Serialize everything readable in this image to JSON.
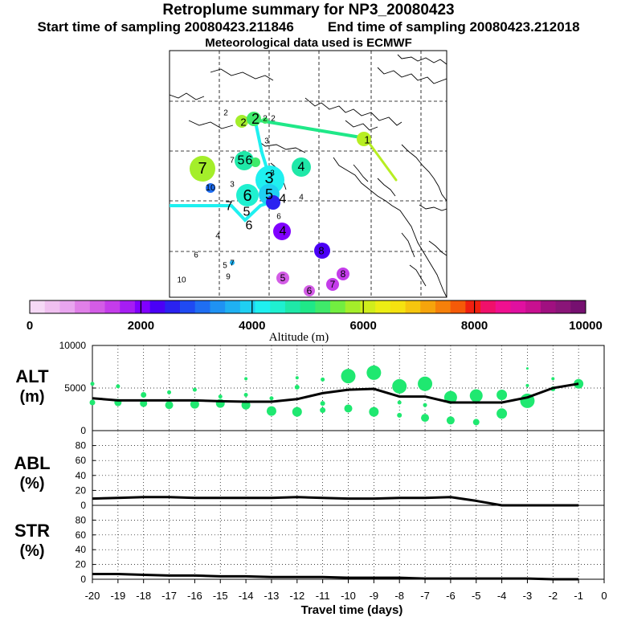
{
  "header": {
    "title": "Retroplume summary for NP3_20080423",
    "start_label": "Start time of sampling 20080423.211846",
    "end_label": "End time of sampling 20080423.212018",
    "met_label": "Meteorological data used is ECMWF"
  },
  "colorbar": {
    "axis_label": "Altitude (m)",
    "ticks": [
      "0",
      "2000",
      "4000",
      "6000",
      "8000",
      "10000"
    ],
    "colors": [
      "#f6d9f6",
      "#f0c0f0",
      "#e9a5ef",
      "#e07fe8",
      "#d35ce6",
      "#c43cea",
      "#a61df3",
      "#8000ff",
      "#4a00f6",
      "#2a22f0",
      "#1f4af2",
      "#1f6ef2",
      "#1f92f3",
      "#1fb1f2",
      "#1fd0f2",
      "#1ff0f0",
      "#1ff0d0",
      "#1fe8a8",
      "#1fe888",
      "#3fea6a",
      "#72ee40",
      "#a4ee2a",
      "#d0ee1c",
      "#ecee14",
      "#f5e210",
      "#f6c60e",
      "#f6a40c",
      "#f6800a",
      "#f55a08",
      "#f02010",
      "#f0106a",
      "#f01090",
      "#e010a0",
      "#c81090",
      "#a01080",
      "#8a1578",
      "#761070"
    ]
  },
  "map_labels": [
    {
      "t": "1",
      "x": 457,
      "y": 174,
      "s": 13
    },
    {
      "t": "2",
      "x": 281,
      "y": 141,
      "s": 10
    },
    {
      "t": "2",
      "x": 303,
      "y": 152,
      "s": 13
    },
    {
      "t": "2",
      "x": 318,
      "y": 148,
      "s": 18
    },
    {
      "t": "2",
      "x": 330,
      "y": 148,
      "s": 10
    },
    {
      "t": "2",
      "x": 340,
      "y": 148,
      "s": 10
    },
    {
      "t": "3",
      "x": 332,
      "y": 176,
      "s": 10
    },
    {
      "t": "3",
      "x": 339,
      "y": 216,
      "s": 10
    },
    {
      "t": "3",
      "x": 335,
      "y": 222,
      "s": 20
    },
    {
      "t": "3",
      "x": 289,
      "y": 230,
      "s": 10
    },
    {
      "t": "4",
      "x": 375,
      "y": 208,
      "s": 16
    },
    {
      "t": "4",
      "x": 352,
      "y": 248,
      "s": 16
    },
    {
      "t": "4",
      "x": 375,
      "y": 246,
      "s": 10
    },
    {
      "t": "4",
      "x": 271,
      "y": 294,
      "s": 10
    },
    {
      "t": "4",
      "x": 352,
      "y": 288,
      "s": 16
    },
    {
      "t": "5",
      "x": 300,
      "y": 200,
      "s": 16
    },
    {
      "t": "5",
      "x": 335,
      "y": 242,
      "s": 18
    },
    {
      "t": "5",
      "x": 307,
      "y": 264,
      "s": 16
    },
    {
      "t": "5",
      "x": 280,
      "y": 331,
      "s": 10
    },
    {
      "t": "5",
      "x": 352,
      "y": 346,
      "s": 12
    },
    {
      "t": "6",
      "x": 310,
      "y": 200,
      "s": 16
    },
    {
      "t": "6",
      "x": 308,
      "y": 244,
      "s": 20
    },
    {
      "t": "6",
      "x": 347,
      "y": 270,
      "s": 10
    },
    {
      "t": "6",
      "x": 310,
      "y": 281,
      "s": 16
    },
    {
      "t": "6",
      "x": 244,
      "y": 318,
      "s": 10
    },
    {
      "t": "6",
      "x": 385,
      "y": 362,
      "s": 12
    },
    {
      "t": "7",
      "x": 252,
      "y": 210,
      "s": 20
    },
    {
      "t": "7",
      "x": 289,
      "y": 200,
      "s": 10
    },
    {
      "t": "7",
      "x": 285,
      "y": 257,
      "s": 16
    },
    {
      "t": "7",
      "x": 289,
      "y": 328,
      "s": 10
    },
    {
      "t": "7",
      "x": 414,
      "y": 354,
      "s": 12
    },
    {
      "t": "8",
      "x": 400,
      "y": 312,
      "s": 13
    },
    {
      "t": "8",
      "x": 427,
      "y": 341,
      "s": 12
    },
    {
      "t": "9",
      "x": 284,
      "y": 345,
      "s": 10
    },
    {
      "t": "10",
      "x": 226,
      "y": 349,
      "s": 10
    },
    {
      "t": "10",
      "x": 262,
      "y": 234,
      "s": 11
    }
  ],
  "panels": {
    "alt": {
      "label_line1": "ALT",
      "label_line2": "(m)",
      "ticks": [
        "10000",
        "5000",
        "0"
      ]
    },
    "abl": {
      "label_line1": "ABL",
      "label_line2": "(%)",
      "ticks": [
        "80",
        "60",
        "40",
        "20",
        "0"
      ]
    },
    "str": {
      "label_line1": "STR",
      "label_line2": "(%)",
      "ticks": [
        "80",
        "60",
        "40",
        "20",
        "0"
      ]
    }
  },
  "x_axis": {
    "label": "Travel time (days)",
    "ticks": [
      "-20",
      "-19",
      "-18",
      "-17",
      "-16",
      "-15",
      "-14",
      "-13",
      "-12",
      "-11",
      "-10",
      "-9",
      "-8",
      "-7",
      "-6",
      "-5",
      "-4",
      "-3",
      "-2",
      "-1",
      "0"
    ]
  },
  "chart_data": {
    "type": "line",
    "x": [
      -20,
      -19,
      -18,
      -17,
      -16,
      -15,
      -14,
      -13,
      -12,
      -11,
      -10,
      -9,
      -8,
      -7,
      -6,
      -5,
      -4,
      -3,
      -2,
      -1
    ],
    "xlabel": "Travel time (days)",
    "xlim": [
      -20,
      0
    ],
    "series": [
      {
        "name": "ALT (m)",
        "ylim": [
          0,
          10000
        ],
        "values": [
          3800,
          3550,
          3550,
          3550,
          3550,
          3450,
          3400,
          3400,
          3700,
          4400,
          4800,
          4900,
          4000,
          4000,
          3300,
          3300,
          3300,
          3900,
          5000,
          5500
        ]
      },
      {
        "name": "ABL (%)",
        "ylim": [
          0,
          100
        ],
        "values": [
          9,
          10,
          11,
          11,
          10,
          10,
          10,
          10,
          11,
          10,
          9,
          9,
          10,
          10,
          11,
          6,
          0,
          0,
          0,
          0
        ]
      },
      {
        "name": "STR (%)",
        "ylim": [
          0,
          100
        ],
        "values": [
          7,
          7,
          6,
          5,
          5,
          4,
          4,
          3,
          3,
          3,
          2,
          2,
          2,
          1,
          1,
          1,
          1,
          1,
          0,
          0
        ]
      }
    ],
    "alt_scatter": [
      {
        "x": -20,
        "v": 5500,
        "r": 2.5
      },
      {
        "x": -20,
        "v": 3300,
        "r": 3.5
      },
      {
        "x": -19,
        "v": 5200,
        "r": 2.5
      },
      {
        "x": -19,
        "v": 3300,
        "r": 4.5
      },
      {
        "x": -18,
        "v": 4200,
        "r": 3.5
      },
      {
        "x": -18,
        "v": 3200,
        "r": 4.5
      },
      {
        "x": -17,
        "v": 4500,
        "r": 2.5
      },
      {
        "x": -17,
        "v": 3000,
        "r": 5
      },
      {
        "x": -16,
        "v": 4800,
        "r": 2.5
      },
      {
        "x": -16,
        "v": 3100,
        "r": 5.5
      },
      {
        "x": -15,
        "v": 4000,
        "r": 2.5
      },
      {
        "x": -15,
        "v": 3200,
        "r": 5.5
      },
      {
        "x": -14,
        "v": 6100,
        "r": 2
      },
      {
        "x": -14,
        "v": 4200,
        "r": 2.5
      },
      {
        "x": -14,
        "v": 3000,
        "r": 5.5
      },
      {
        "x": -13,
        "v": 2300,
        "r": 6
      },
      {
        "x": -13,
        "v": 3800,
        "r": 2.5
      },
      {
        "x": -12,
        "v": 6200,
        "r": 2
      },
      {
        "x": -12,
        "v": 5100,
        "r": 3
      },
      {
        "x": -12,
        "v": 2200,
        "r": 6
      },
      {
        "x": -11,
        "v": 6000,
        "r": 2.5
      },
      {
        "x": -11,
        "v": 3200,
        "r": 3
      },
      {
        "x": -11,
        "v": 2400,
        "r": 3.5
      },
      {
        "x": -10,
        "v": 6400,
        "r": 9
      },
      {
        "x": -10,
        "v": 2600,
        "r": 5
      },
      {
        "x": -9,
        "v": 6800,
        "r": 9
      },
      {
        "x": -9,
        "v": 2200,
        "r": 6
      },
      {
        "x": -8,
        "v": 5200,
        "r": 9
      },
      {
        "x": -8,
        "v": 3300,
        "r": 2.5
      },
      {
        "x": -8,
        "v": 1800,
        "r": 3
      },
      {
        "x": -7,
        "v": 5500,
        "r": 9
      },
      {
        "x": -7,
        "v": 3000,
        "r": 2.5
      },
      {
        "x": -7,
        "v": 1500,
        "r": 5
      },
      {
        "x": -6,
        "v": 3900,
        "r": 8
      },
      {
        "x": -6,
        "v": 1200,
        "r": 5
      },
      {
        "x": -5,
        "v": 4100,
        "r": 8
      },
      {
        "x": -5,
        "v": 1000,
        "r": 4
      },
      {
        "x": -4,
        "v": 4200,
        "r": 6.5
      },
      {
        "x": -4,
        "v": 2000,
        "r": 6.5
      },
      {
        "x": -3,
        "v": 3500,
        "r": 9
      },
      {
        "x": -3,
        "v": 5300,
        "r": 2
      },
      {
        "x": -3,
        "v": 7300,
        "r": 1.5
      },
      {
        "x": -2,
        "v": 4900,
        "r": 3
      },
      {
        "x": -2,
        "v": 6100,
        "r": 2
      },
      {
        "x": -1,
        "v": 5500,
        "r": 6
      }
    ]
  }
}
